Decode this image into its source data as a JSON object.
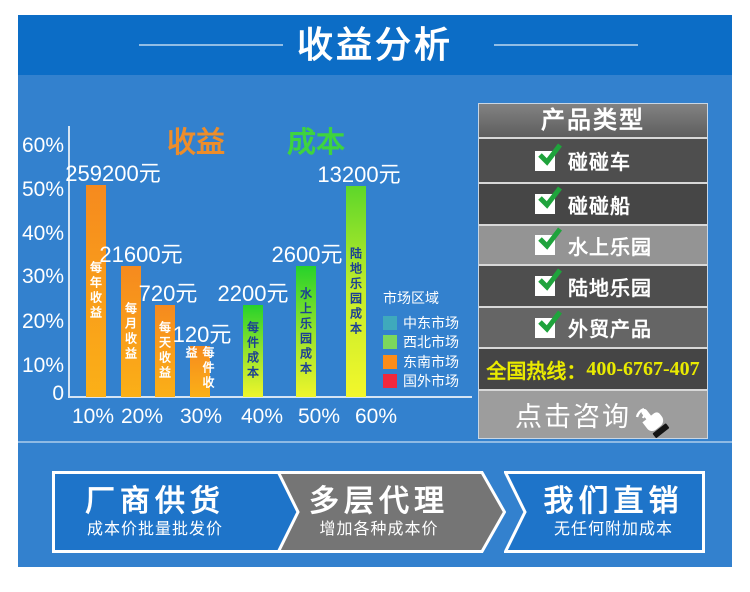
{
  "header": {
    "title": "收益分析"
  },
  "chart_data": {
    "type": "bar",
    "series": [
      {
        "name": "收益",
        "color_hex": "#ED8D2B"
      },
      {
        "name": "成本",
        "color_hex": "#3ED43E"
      }
    ],
    "y_tick_labels": [
      "60%",
      "50%",
      "40%",
      "30%",
      "20%",
      "10%",
      "0"
    ],
    "x_tick_labels": [
      "10%",
      "20%",
      "30%",
      "40%",
      "50%",
      "60%"
    ],
    "ylim": [
      0,
      65
    ],
    "grid": false,
    "bars": [
      {
        "series": "收益",
        "value_label": "259200元",
        "caption": "每年收益",
        "percent": 50.7
      },
      {
        "series": "收益",
        "value_label": "21600元",
        "caption": "每月收益",
        "percent": 31.3
      },
      {
        "series": "收益",
        "value_label": "720元",
        "caption": "每天收益",
        "percent": 22.0
      },
      {
        "series": "收益",
        "value_label": "120元",
        "caption": "每件收益",
        "percent": 12.2
      },
      {
        "series": "成本",
        "value_label": "2200元",
        "caption": "每件成本",
        "percent": 22.0
      },
      {
        "series": "成本",
        "value_label": "2600元",
        "caption": "水上乐园成本",
        "percent": 31.3
      },
      {
        "series": "成本",
        "value_label": "13200元",
        "caption": "陆地乐园成本",
        "percent": 50.5
      }
    ],
    "legend": {
      "title": "市场区域",
      "position": "right-inside",
      "items": [
        {
          "label": "中东市场",
          "color_hex": "#3FA9BC"
        },
        {
          "label": "西北市场",
          "color_hex": "#7CD75C"
        },
        {
          "label": "东南市场",
          "color_hex": "#FB8D18"
        },
        {
          "label": "国外市场",
          "color_hex": "#F2283C"
        }
      ]
    }
  },
  "product_panel": {
    "title": "产品类型",
    "items": [
      {
        "label": "碰碰车",
        "checked": true
      },
      {
        "label": "碰碰船",
        "checked": true
      },
      {
        "label": "水上乐园",
        "checked": true
      },
      {
        "label": "陆地乐园",
        "checked": true
      },
      {
        "label": "外贸产品",
        "checked": true
      }
    ],
    "hotline": {
      "label": "全国热线：",
      "number": "400-6767-407"
    },
    "cta": "点击咨询"
  },
  "flow_steps": [
    {
      "title": "厂商供货",
      "subtitle": "成本价批量批发价",
      "style": "blue"
    },
    {
      "title": "多层代理",
      "subtitle": "增加各种成本价",
      "style": "gray"
    },
    {
      "title": "我们直销",
      "subtitle": "无任何附加成本",
      "style": "blue"
    }
  ],
  "colors": {
    "header_bg": "#0C6DC6",
    "body_bg": "#3381CE",
    "flow_blue": "#1E74C9",
    "flow_gray": "#757575",
    "hotline_text": "#E9EA00",
    "check_green": "#1FA33C"
  }
}
